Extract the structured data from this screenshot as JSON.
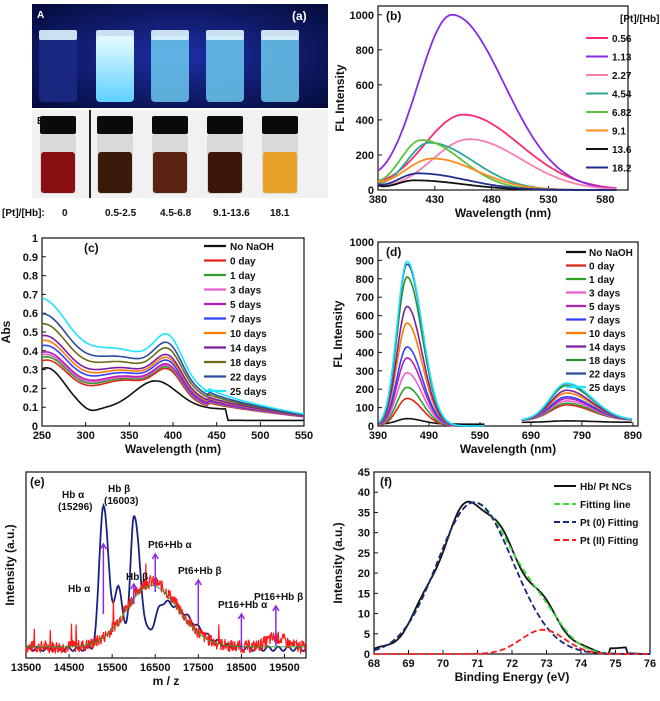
{
  "panel_a": {
    "label": "(a)",
    "row_a_label": "A",
    "row_b_label": "B",
    "ratio_caption": "[Pt]/[Hb]:",
    "vial_labels": [
      "0",
      "0.5-2.5",
      "4.5-6.8",
      "9.1-13.6",
      "18.1"
    ],
    "colors": {
      "uv_background": "#0a1660",
      "uv_glow": "#9fe9ff",
      "liquid_red": "#8a0f12",
      "liquid_brown": "#3a1a08",
      "liquid_yellow": "#e8a22a"
    }
  },
  "chart_data": [
    {
      "id": "b",
      "panel_label": "(b)",
      "type": "line",
      "xlabel": "Wavelength (nm)",
      "ylabel": "FL Intensity",
      "xlim": [
        380,
        600
      ],
      "ylim": [
        0,
        1050
      ],
      "xticks": [
        380,
        430,
        480,
        530,
        580
      ],
      "yticks": [
        0,
        200,
        400,
        600,
        800,
        1000
      ],
      "legend_title": "[Pt]/[Hb]",
      "series": [
        {
          "name": "0.56",
          "color": "#ff2a6d",
          "peak": 455,
          "amp": 430,
          "wl": 48,
          "wr": 70
        },
        {
          "name": "1.13",
          "color": "#8a2be2",
          "peak": 445,
          "amp": 1000,
          "wl": 42,
          "wr": 65
        },
        {
          "name": "2.27",
          "color": "#f77fb0",
          "peak": 460,
          "amp": 290,
          "wl": 45,
          "wr": 65
        },
        {
          "name": "4.54",
          "color": "#2ba89a",
          "peak": 425,
          "amp": 270,
          "wl": 28,
          "wr": 55
        },
        {
          "name": "6.82",
          "color": "#5ec23a",
          "peak": 418,
          "amp": 285,
          "wl": 26,
          "wr": 50
        },
        {
          "name": "9.1",
          "color": "#ff8a1f",
          "peak": 428,
          "amp": 180,
          "wl": 35,
          "wr": 55
        },
        {
          "name": "13.6",
          "color": "#111111",
          "peak": 412,
          "amp": 55,
          "wl": 22,
          "wr": 60
        },
        {
          "name": "18.2",
          "color": "#1f2f8f",
          "peak": 415,
          "amp": 95,
          "wl": 25,
          "wr": 60
        }
      ]
    },
    {
      "id": "c",
      "panel_label": "(c)",
      "type": "line",
      "xlabel": "Wavelength (nm)",
      "ylabel": "Abs",
      "xlim": [
        250,
        550
      ],
      "ylim": [
        0,
        1.0
      ],
      "xticks": [
        250,
        300,
        350,
        400,
        450,
        500,
        550
      ],
      "yticks": [
        0,
        0.1,
        0.2,
        0.3,
        0.4,
        0.5,
        0.6,
        0.7,
        0.8,
        0.9,
        1
      ],
      "series": [
        {
          "name": "No NaOH",
          "color": "#111111",
          "scale": 0.0
        },
        {
          "name": "0 day",
          "color": "#e2231a",
          "scale": 0.06
        },
        {
          "name": "1 day",
          "color": "#2aa02a",
          "scale": 0.1
        },
        {
          "name": "3 days",
          "color": "#e75fd0",
          "scale": 0.13
        },
        {
          "name": "5 days",
          "color": "#b51fb5",
          "scale": 0.16
        },
        {
          "name": "7 days",
          "color": "#3340ff",
          "scale": 0.24
        },
        {
          "name": "10 days",
          "color": "#ff7b00",
          "scale": 0.3
        },
        {
          "name": "14 days",
          "color": "#7a1fa2",
          "scale": 0.36
        },
        {
          "name": "18 days",
          "color": "#6b6b1c",
          "scale": 0.5
        },
        {
          "name": "22 days",
          "color": "#2c4d9e",
          "scale": 0.62
        },
        {
          "name": "25 days",
          "color": "#1de4ff",
          "scale": 0.8
        }
      ]
    },
    {
      "id": "d",
      "panel_label": "(d)",
      "type": "line",
      "xlabel": "Wavelength (nm)",
      "ylabel": "FL Intensity",
      "xlim": [
        390,
        900
      ],
      "ylim": [
        0,
        1000
      ],
      "xticks": [
        390,
        490,
        590,
        690,
        790,
        890
      ],
      "yticks": [
        0,
        100,
        200,
        300,
        400,
        500,
        600,
        700,
        800,
        900,
        1000
      ],
      "series": [
        {
          "name": "No NaOH",
          "color": "#111111",
          "amp": 30
        },
        {
          "name": "0 day",
          "color": "#e2231a",
          "amp": 150
        },
        {
          "name": "1 day",
          "color": "#2aa02a",
          "amp": 210
        },
        {
          "name": "3 days",
          "color": "#e75fd0",
          "amp": 290
        },
        {
          "name": "5 days",
          "color": "#b51fb5",
          "amp": 370
        },
        {
          "name": "7 days",
          "color": "#3340ff",
          "amp": 430
        },
        {
          "name": "10 days",
          "color": "#ff7b00",
          "amp": 560
        },
        {
          "name": "14 days",
          "color": "#7a1fa2",
          "amp": 650
        },
        {
          "name": "18 days",
          "color": "#2f8f2f",
          "amp": 810
        },
        {
          "name": "22 days",
          "color": "#2c4d9e",
          "amp": 880
        },
        {
          "name": "25 days",
          "color": "#1de4ff",
          "amp": 895
        }
      ]
    },
    {
      "id": "e",
      "panel_label": "(e)",
      "type": "line",
      "xlabel": "m / z",
      "ylabel": "Intensity (a.u.)",
      "xlim": [
        13500,
        20000
      ],
      "ylim": [
        0,
        1
      ],
      "xticks": [
        13500,
        14500,
        15500,
        16500,
        17500,
        18500,
        19500
      ],
      "series": [
        {
          "name": "blue",
          "color": "#1a237e"
        },
        {
          "name": "red",
          "color": "#ff1a1a"
        },
        {
          "name": "green",
          "color": "#2aa02a"
        }
      ],
      "annotations": [
        {
          "text": "Hb α",
          "sub": "(15296)",
          "x": 15296
        },
        {
          "text": "Hb β",
          "sub": "(16003)",
          "x": 16003
        },
        {
          "text": "Pt6+Hb α",
          "x": 16500
        },
        {
          "text": "Hb β",
          "x": 16003
        },
        {
          "text": "Hb α",
          "x": 15296
        },
        {
          "text": "Pt6+Hb β",
          "x": 17500
        },
        {
          "text": "Pt16+Hb α",
          "x": 18500
        },
        {
          "text": "Pt16+Hb β",
          "x": 19300
        }
      ]
    },
    {
      "id": "f",
      "panel_label": "(f)",
      "type": "line",
      "xlabel": "Binding Energy (eV)",
      "ylabel": "Intensity (a.u.)",
      "xlim": [
        68,
        76
      ],
      "ylim": [
        0,
        45
      ],
      "xticks": [
        68,
        69,
        70,
        71,
        72,
        73,
        74,
        75,
        76
      ],
      "yticks": [
        0,
        5,
        10,
        15,
        20,
        25,
        30,
        35,
        40,
        45
      ],
      "series": [
        {
          "name": "Hb/ Pt NCs",
          "color": "#111111",
          "dash": ""
        },
        {
          "name": "Fitting line",
          "color": "#3ddc3d",
          "dash": "6,3"
        },
        {
          "name": "Pt (0) Fitting",
          "color": "#1a237e",
          "dash": "6,3"
        },
        {
          "name": "Pt (II) Fitting",
          "color": "#ff1a1a",
          "dash": "6,3"
        }
      ]
    }
  ]
}
